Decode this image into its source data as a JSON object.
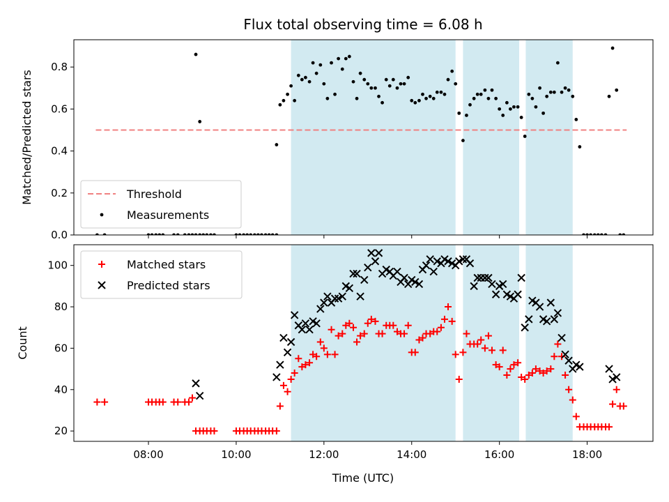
{
  "chart_data": {
    "title": "Flux total observing time = 6.08 h",
    "xlabel": "Time (UTC)",
    "x_ticks": [
      "08:00",
      "10:00",
      "12:00",
      "14:00",
      "16:00",
      "18:00"
    ],
    "x_tick_hours": [
      8,
      10,
      12,
      14,
      16,
      18
    ],
    "xlim": [
      6.3,
      19.5
    ],
    "shaded_intervals": [
      [
        11.25,
        15.0
      ],
      [
        15.17,
        16.45
      ],
      [
        16.6,
        17.67
      ]
    ],
    "colors": {
      "shade": "#add8e6",
      "threshold": "#f08080",
      "measurements": "#000000",
      "matched": "#ff0000",
      "predicted": "#000000"
    },
    "panels": [
      {
        "type": "scatter",
        "ylabel": "Matched/Predicted stars",
        "ylim": [
          0,
          0.93
        ],
        "y_ticks": [
          "0.0",
          "0.2",
          "0.4",
          "0.6",
          "0.8"
        ],
        "y_tick_values": [
          0,
          0.2,
          0.4,
          0.6,
          0.8
        ],
        "legend_position": "lower-left",
        "threshold": {
          "name": "Threshold",
          "value": 0.5,
          "x_range": [
            6.8,
            18.9
          ]
        },
        "series": [
          {
            "name": "Measurements",
            "x": [
              6.83,
              7.0,
              8.0,
              8.08,
              8.17,
              8.25,
              8.33,
              8.58,
              8.67,
              8.83,
              8.92,
              9.0,
              9.08,
              9.17,
              9.25,
              9.33,
              9.42,
              9.5,
              10.0,
              10.08,
              10.17,
              10.25,
              10.33,
              10.42,
              10.5,
              10.58,
              10.67,
              10.75,
              10.83,
              10.92,
              11.0,
              11.08,
              11.17,
              11.25,
              11.33,
              11.42,
              11.5,
              11.58,
              11.67,
              11.75,
              11.83,
              11.92,
              12.0,
              12.08,
              12.17,
              12.25,
              12.33,
              12.42,
              12.5,
              12.58,
              12.67,
              12.75,
              12.83,
              12.92,
              13.0,
              13.08,
              13.17,
              13.25,
              13.33,
              13.42,
              13.5,
              13.58,
              13.67,
              13.75,
              13.83,
              13.92,
              14.0,
              14.08,
              14.17,
              14.25,
              14.33,
              14.42,
              14.5,
              14.58,
              14.67,
              14.75,
              14.83,
              14.92,
              15.0,
              15.08,
              15.17,
              15.25,
              15.33,
              15.42,
              15.5,
              15.58,
              15.67,
              15.75,
              15.83,
              15.92,
              16.0,
              16.08,
              16.17,
              16.25,
              16.33,
              16.42,
              16.5,
              16.58,
              16.67,
              16.75,
              16.83,
              16.92,
              17.0,
              17.08,
              17.17,
              17.25,
              17.33,
              17.42,
              17.5,
              17.58,
              17.67,
              17.75,
              17.83,
              17.92,
              18.0,
              18.08,
              18.17,
              18.25,
              18.33,
              18.42,
              18.5,
              18.58,
              18.67,
              18.75,
              18.83,
              9.08,
              9.17,
              10.92
            ],
            "y": [
              0,
              0,
              0,
              0,
              0,
              0,
              0,
              0,
              0,
              0,
              0,
              0,
              0.86,
              0.54,
              0,
              0,
              0,
              0,
              0,
              0,
              0,
              0,
              0,
              0,
              0,
              0,
              0,
              0,
              0,
              0.43,
              0.62,
              0.64,
              0.67,
              0.71,
              0.64,
              0.76,
              0.74,
              0.75,
              0.73,
              0.82,
              0.77,
              0.81,
              0.72,
              0.65,
              0.82,
              0.67,
              0.84,
              0.79,
              0.84,
              0.85,
              0.73,
              0.65,
              0.77,
              0.74,
              0.72,
              0.7,
              0.7,
              0.66,
              0.63,
              0.74,
              0.71,
              0.74,
              0.7,
              0.72,
              0.72,
              0.75,
              0.64,
              0.63,
              0.64,
              0.67,
              0.65,
              0.66,
              0.65,
              0.68,
              0.68,
              0.67,
              0.74,
              0.78,
              0.72,
              0.58,
              0.45,
              0.57,
              0.62,
              0.65,
              0.67,
              0.67,
              0.69,
              0.65,
              0.69,
              0.65,
              0.6,
              0.57,
              0.63,
              0.6,
              0.61,
              0.61,
              0.56,
              0.47,
              0.67,
              0.65,
              0.61,
              0.7,
              0.58,
              0.66,
              0.68,
              0.68,
              0.82,
              0.68,
              0.7,
              0.69,
              0.66,
              0.55,
              0.42,
              0,
              0,
              0,
              0,
              0,
              0,
              0,
              0.66,
              0.89,
              0.69,
              0,
              0,
              0,
              0,
              0
            ]
          }
        ]
      },
      {
        "type": "scatter",
        "ylabel": "Count",
        "ylim": [
          15,
          110
        ],
        "y_ticks": [
          "20",
          "40",
          "60",
          "80",
          "100"
        ],
        "y_tick_values": [
          20,
          40,
          60,
          80,
          100
        ],
        "legend_position": "upper-left",
        "series": [
          {
            "name": "Matched stars",
            "marker": "plus",
            "x": [
              6.83,
              7.0,
              8.0,
              8.08,
              8.17,
              8.25,
              8.33,
              8.58,
              8.67,
              8.83,
              8.92,
              9.0,
              9.08,
              9.17,
              9.25,
              9.33,
              9.42,
              9.5,
              10.0,
              10.08,
              10.17,
              10.25,
              10.33,
              10.42,
              10.5,
              10.58,
              10.67,
              10.75,
              10.83,
              10.92,
              11.0,
              11.08,
              11.17,
              11.25,
              11.33,
              11.42,
              11.5,
              11.58,
              11.67,
              11.75,
              11.83,
              11.92,
              12.0,
              12.08,
              12.17,
              12.25,
              12.33,
              12.42,
              12.5,
              12.58,
              12.67,
              12.75,
              12.83,
              12.92,
              13.0,
              13.08,
              13.17,
              13.25,
              13.33,
              13.42,
              13.5,
              13.58,
              13.67,
              13.75,
              13.83,
              13.92,
              14.0,
              14.08,
              14.17,
              14.25,
              14.33,
              14.42,
              14.5,
              14.58,
              14.67,
              14.75,
              14.83,
              14.92,
              15.0,
              15.08,
              15.17,
              15.25,
              15.33,
              15.42,
              15.5,
              15.58,
              15.67,
              15.75,
              15.83,
              15.92,
              16.0,
              16.08,
              16.17,
              16.25,
              16.33,
              16.42,
              16.5,
              16.58,
              16.67,
              16.75,
              16.83,
              16.92,
              17.0,
              17.08,
              17.17,
              17.25,
              17.33,
              17.42,
              17.5,
              17.58,
              17.67,
              17.75,
              17.83,
              17.92,
              18.0,
              18.08,
              18.17,
              18.25,
              18.33,
              18.42,
              18.5,
              18.58,
              18.67,
              18.75,
              18.83
            ],
            "y": [
              34,
              34,
              34,
              34,
              34,
              34,
              34,
              34,
              34,
              34,
              34,
              36,
              20,
              20,
              20,
              20,
              20,
              20,
              20,
              20,
              20,
              20,
              20,
              20,
              20,
              20,
              20,
              20,
              20,
              20,
              32,
              42,
              39,
              45,
              48,
              55,
              51,
              52,
              53,
              57,
              56,
              63,
              60,
              57,
              69,
              57,
              66,
              67,
              71,
              72,
              70,
              63,
              66,
              67,
              72,
              74,
              73,
              67,
              67,
              71,
              71,
              71,
              68,
              67,
              67,
              71,
              58,
              58,
              64,
              65,
              67,
              67,
              68,
              68,
              70,
              74,
              80,
              73,
              57,
              45,
              58,
              67,
              62,
              62,
              62,
              64,
              60,
              66,
              59,
              52,
              51,
              59,
              47,
              50,
              52,
              53,
              46,
              45,
              47,
              48,
              50,
              49,
              48,
              49,
              50,
              56,
              62,
              56,
              47,
              40,
              35,
              27,
              22,
              22,
              22,
              22,
              22,
              22,
              22,
              22,
              22,
              33,
              40,
              32,
              32
            ]
          },
          {
            "name": "Predicted stars",
            "marker": "x",
            "x": [
              9.08,
              9.17,
              10.92,
              11.0,
              11.08,
              11.17,
              11.25,
              11.33,
              11.42,
              11.5,
              11.58,
              11.67,
              11.75,
              11.83,
              11.92,
              12.0,
              12.08,
              12.17,
              12.25,
              12.33,
              12.42,
              12.5,
              12.58,
              12.67,
              12.75,
              12.83,
              12.92,
              13.0,
              13.08,
              13.17,
              13.25,
              13.33,
              13.42,
              13.5,
              13.58,
              13.67,
              13.75,
              13.83,
              13.92,
              14.0,
              14.08,
              14.17,
              14.25,
              14.33,
              14.42,
              14.5,
              14.58,
              14.67,
              14.75,
              14.83,
              14.92,
              15.0,
              15.08,
              15.17,
              15.25,
              15.33,
              15.42,
              15.5,
              15.58,
              15.67,
              15.75,
              15.83,
              15.92,
              16.0,
              16.08,
              16.17,
              16.25,
              16.33,
              16.42,
              16.5,
              16.58,
              16.67,
              16.75,
              16.83,
              16.92,
              17.0,
              17.08,
              17.17,
              17.25,
              17.33,
              17.42,
              17.5,
              17.58,
              17.67,
              17.75,
              17.83,
              18.5,
              18.58,
              18.67
            ],
            "y": [
              43,
              37,
              46,
              52,
              65,
              58,
              63,
              76,
              71,
              69,
              72,
              69,
              73,
              72,
              79,
              82,
              85,
              82,
              84,
              84,
              85,
              90,
              89,
              96,
              96,
              85,
              93,
              99,
              106,
              102,
              106,
              96,
              98,
              97,
              95,
              97,
              92,
              94,
              91,
              93,
              92,
              91,
              98,
              100,
              103,
              97,
              102,
              101,
              103,
              102,
              101,
              100,
              102,
              103,
              103,
              101,
              90,
              94,
              94,
              94,
              94,
              91,
              86,
              90,
              91,
              86,
              85,
              84,
              86,
              94,
              70,
              74,
              83,
              82,
              80,
              74,
              73,
              82,
              74,
              77,
              65,
              57,
              54,
              50,
              52,
              51,
              50,
              45,
              46
            ]
          }
        ]
      }
    ]
  }
}
